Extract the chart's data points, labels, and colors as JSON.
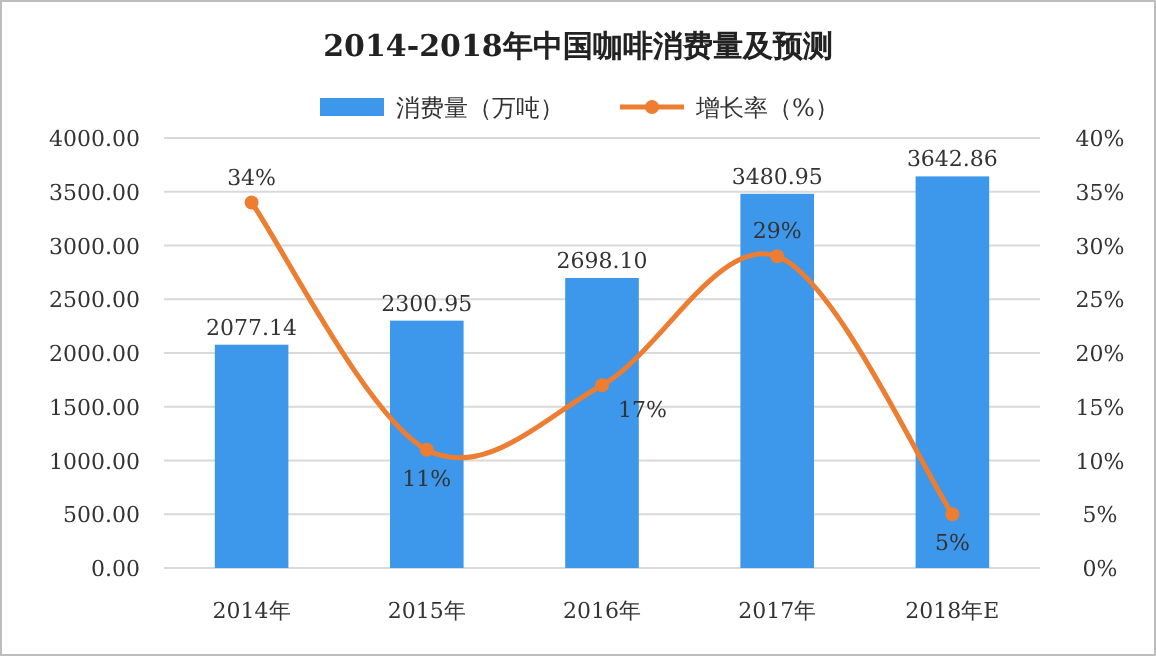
{
  "chart_data": {
    "type": "bar",
    "title": "2014-2018年中国咖啡消费量及预测",
    "categories": [
      "2014年",
      "2015年",
      "2016年",
      "2017年",
      "2018年E"
    ],
    "series": [
      {
        "name": "消费量（万吨）",
        "color": "#3d97ea",
        "values": [
          2077.14,
          2300.95,
          2698.1,
          3480.95,
          3642.86
        ],
        "value_labels": [
          "2077.14",
          "2300.95",
          "2698.10",
          "3480.95",
          "3642.86"
        ]
      },
      {
        "name": "增长率（%）",
        "type": "line",
        "axis": "y2",
        "color": "#ed7d31",
        "marker": "circle",
        "values": [
          34,
          11,
          17,
          29,
          5
        ],
        "value_labels": [
          "34%",
          "11%",
          "17%",
          "29%",
          "5%"
        ]
      }
    ],
    "ylim": [
      0,
      4000
    ],
    "yticks": [
      {
        "value": 0,
        "label": "0.00"
      },
      {
        "value": 500,
        "label": "500.00"
      },
      {
        "value": 1000,
        "label": "1000.00"
      },
      {
        "value": 1500,
        "label": "1500.00"
      },
      {
        "value": 2000,
        "label": "2000.00"
      },
      {
        "value": 2500,
        "label": "2500.00"
      },
      {
        "value": 3000,
        "label": "3000.00"
      },
      {
        "value": 3500,
        "label": "3500.00"
      },
      {
        "value": 4000,
        "label": "4000.00"
      }
    ],
    "y2lim": [
      0,
      40
    ],
    "y2ticks": [
      {
        "value": 0,
        "label": "0%"
      },
      {
        "value": 5,
        "label": "5%"
      },
      {
        "value": 10,
        "label": "10%"
      },
      {
        "value": 15,
        "label": "15%"
      },
      {
        "value": 20,
        "label": "20%"
      },
      {
        "value": 25,
        "label": "25%"
      },
      {
        "value": 30,
        "label": "30%"
      },
      {
        "value": 35,
        "label": "35%"
      },
      {
        "value": 40,
        "label": "40%"
      }
    ],
    "grid": "y",
    "legend": "top"
  }
}
